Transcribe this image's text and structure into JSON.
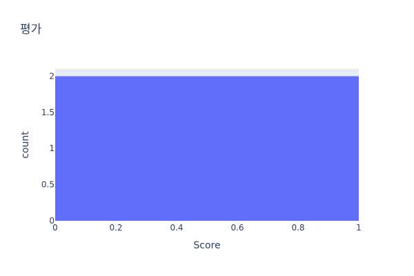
{
  "chart_data": {
    "type": "bar",
    "title": "평가",
    "xlabel": "Score",
    "ylabel": "count",
    "bins": [
      {
        "x_start": 0,
        "x_end": 1,
        "count": 2
      }
    ],
    "xlim": [
      0,
      1
    ],
    "ylim": [
      0,
      2.1
    ],
    "x_ticks": [
      "0",
      "0.2",
      "0.4",
      "0.6",
      "0.8",
      "1"
    ],
    "y_ticks": [
      "0",
      "0.5",
      "1",
      "1.5",
      "2"
    ],
    "grid": true,
    "legend": "none",
    "colors": {
      "bar": "#636efa",
      "plot_background": "#e5ecf6",
      "text": "#2a3f5f"
    }
  }
}
